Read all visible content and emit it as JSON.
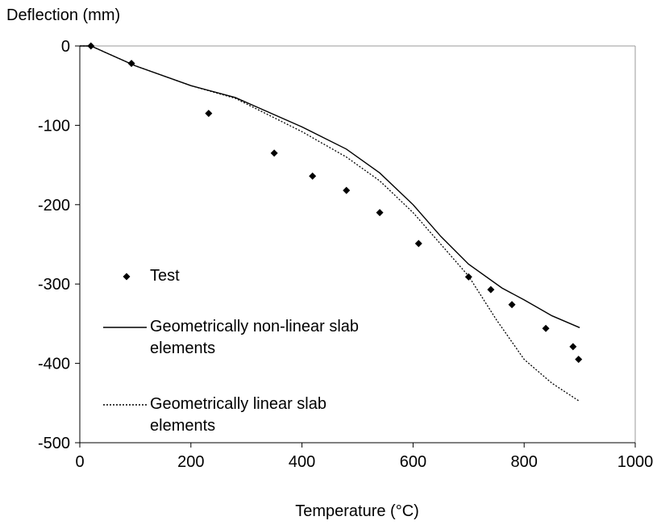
{
  "chart_data": {
    "type": "line",
    "y_label": "Deflection (mm)",
    "x_label": "Temperature (°C)",
    "xlim": [
      0,
      1000
    ],
    "xticks": [
      0,
      200,
      400,
      600,
      800,
      1000
    ],
    "ylim": [
      -500,
      0
    ],
    "yticks": [
      0,
      -100,
      -200,
      -300,
      -400,
      -500
    ],
    "grid": false,
    "legend": "left",
    "series": [
      {
        "name": "Test",
        "color": "#000000",
        "style": "markers",
        "x": [
          20,
          93,
          232,
          350,
          419,
          480,
          540,
          610,
          700,
          740,
          778,
          839,
          888,
          898
        ],
        "values": [
          0,
          -22,
          -85,
          -135,
          -164,
          -182,
          -210,
          -249,
          -291,
          -307,
          -326,
          -356,
          -379,
          -395
        ]
      },
      {
        "name": "Geometrically non-linear slab elements",
        "color": "#000000",
        "style": "solid",
        "x": [
          0,
          20,
          100,
          200,
          280,
          400,
          480,
          540,
          600,
          650,
          700,
          760,
          800,
          850,
          900
        ],
        "values": [
          0,
          0,
          -25,
          -50,
          -65,
          -102,
          -130,
          -160,
          -200,
          -240,
          -275,
          -305,
          -320,
          -340,
          -355
        ]
      },
      {
        "name": "Geometrically linear slab elements",
        "color": "#000000",
        "style": "dotted",
        "x": [
          0,
          20,
          100,
          200,
          280,
          400,
          480,
          540,
          600,
          650,
          700,
          750,
          800,
          850,
          900
        ],
        "values": [
          0,
          0,
          -25,
          -50,
          -66,
          -108,
          -140,
          -170,
          -210,
          -250,
          -290,
          -345,
          -395,
          -425,
          -448
        ]
      }
    ]
  }
}
